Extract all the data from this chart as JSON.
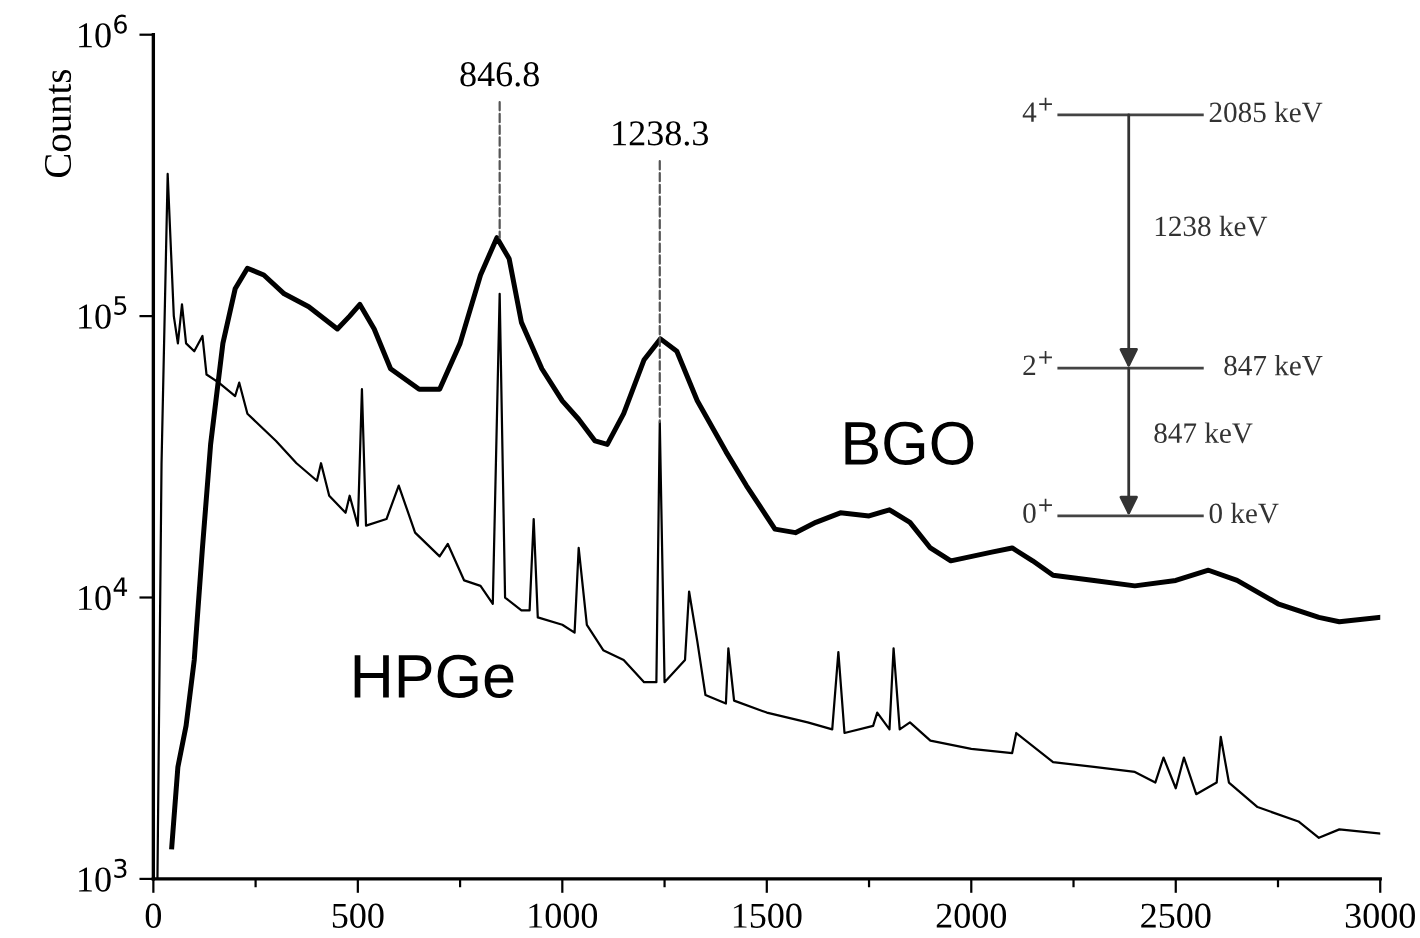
{
  "chart_data": {
    "type": "line",
    "ylabel": "Counts",
    "log": "y",
    "grid": false,
    "legend": false,
    "marker": "none",
    "line_style": "solid",
    "xlim": [
      0,
      3000
    ],
    "xticks": [
      0,
      {
        "value": 250,
        "label": null
      },
      500,
      {
        "value": 750,
        "label": null
      },
      1000,
      {
        "value": 1250,
        "label": null
      },
      1500,
      {
        "value": 1750,
        "label": null
      },
      2000,
      {
        "value": 2250,
        "label": null
      },
      2500,
      {
        "value": 2750,
        "label": null
      },
      3000
    ],
    "ylim": [
      1000,
      1000000
    ],
    "yticks": [
      {
        "value": 1000,
        "label": "10$^{3}$"
      },
      {
        "value": 10000,
        "label": "10$^{4}$"
      },
      {
        "value": 100000,
        "label": "10$^{5}$"
      },
      {
        "value": 1000000,
        "label": "10$^{6}$"
      }
    ],
    "series": [
      {
        "name": "BGO",
        "color": "#000000",
        "x": [
          45,
          60,
          80,
          100,
          120,
          140,
          170,
          200,
          230,
          270,
          320,
          380,
          450,
          480,
          505,
          540,
          580,
          650,
          700,
          750,
          800,
          840,
          870,
          900,
          950,
          1000,
          1040,
          1080,
          1110,
          1150,
          1200,
          1240,
          1280,
          1330,
          1400,
          1450,
          1520,
          1570,
          1620,
          1680,
          1750,
          1800,
          1850,
          1900,
          1950,
          2050,
          2100,
          2150,
          2200,
          2300,
          2400,
          2500,
          2580,
          2650,
          2750,
          2850,
          2900,
          3000
        ],
        "values": [
          1300,
          2500,
          3500,
          6000,
          15000,
          35000,
          80000,
          125000,
          148000,
          140000,
          120000,
          108000,
          90000,
          100000,
          110000,
          90000,
          65000,
          55000,
          55000,
          80000,
          140000,
          190000,
          160000,
          95000,
          65000,
          50000,
          43000,
          36000,
          35000,
          45000,
          70000,
          83000,
          75000,
          50000,
          33000,
          25000,
          17500,
          17000,
          18500,
          20000,
          19500,
          20500,
          18500,
          15000,
          13500,
          14500,
          15000,
          13500,
          12000,
          11500,
          11000,
          11500,
          12500,
          11500,
          9500,
          8500,
          8200,
          8500
        ]
      },
      {
        "name": "HPGe",
        "color": "#000000",
        "x": [
          10,
          20,
          35,
          50,
          60,
          70,
          80,
          100,
          120,
          130,
          160,
          200,
          210,
          230,
          300,
          350,
          400,
          410,
          430,
          470,
          480,
          500,
          510,
          520,
          570,
          600,
          640,
          700,
          720,
          760,
          800,
          830,
          846.8,
          860,
          900,
          920,
          930,
          940,
          1000,
          1030,
          1040,
          1060,
          1100,
          1150,
          1200,
          1230,
          1238.3,
          1250,
          1300,
          1310,
          1330,
          1350,
          1400,
          1406,
          1420,
          1500,
          1600,
          1660,
          1675,
          1690,
          1760,
          1770,
          1800,
          1810,
          1825,
          1850,
          1900,
          2000,
          2100,
          2110,
          2200,
          2300,
          2400,
          2450,
          2470,
          2500,
          2520,
          2550,
          2600,
          2610,
          2630,
          2700,
          2800,
          2850,
          2900,
          3000
        ],
        "values": [
          1000,
          30000,
          320000,
          100000,
          80000,
          110000,
          80000,
          75000,
          85000,
          62000,
          58000,
          52000,
          58000,
          45000,
          36000,
          30000,
          26000,
          30000,
          23000,
          20000,
          23000,
          18000,
          55000,
          18000,
          19000,
          25000,
          17000,
          14000,
          15500,
          11500,
          11000,
          9500,
          120000,
          10000,
          9000,
          9000,
          19000,
          8500,
          8000,
          7500,
          15000,
          8000,
          6500,
          6000,
          5000,
          5000,
          42000,
          5000,
          6000,
          10500,
          7000,
          4500,
          4200,
          6600,
          4300,
          3900,
          3600,
          3400,
          6400,
          3300,
          3500,
          3900,
          3400,
          6600,
          3400,
          3600,
          3100,
          2900,
          2800,
          3300,
          2600,
          2500,
          2400,
          2200,
          2700,
          2100,
          2700,
          2000,
          2200,
          3200,
          2200,
          1800,
          1600,
          1400,
          1500,
          1450
        ]
      }
    ],
    "annotations": [
      {
        "text": "846.8",
        "x": 846.8,
        "y": 190000
      },
      {
        "text": "1238.3",
        "x": 1238.3,
        "y": 42000
      },
      "4$^{+}$",
      "2$^{+}$",
      "0$^{+}$",
      "2085 keV",
      "1238 keV",
      "847 keV",
      "847 keV",
      "0 keV"
    ]
  }
}
